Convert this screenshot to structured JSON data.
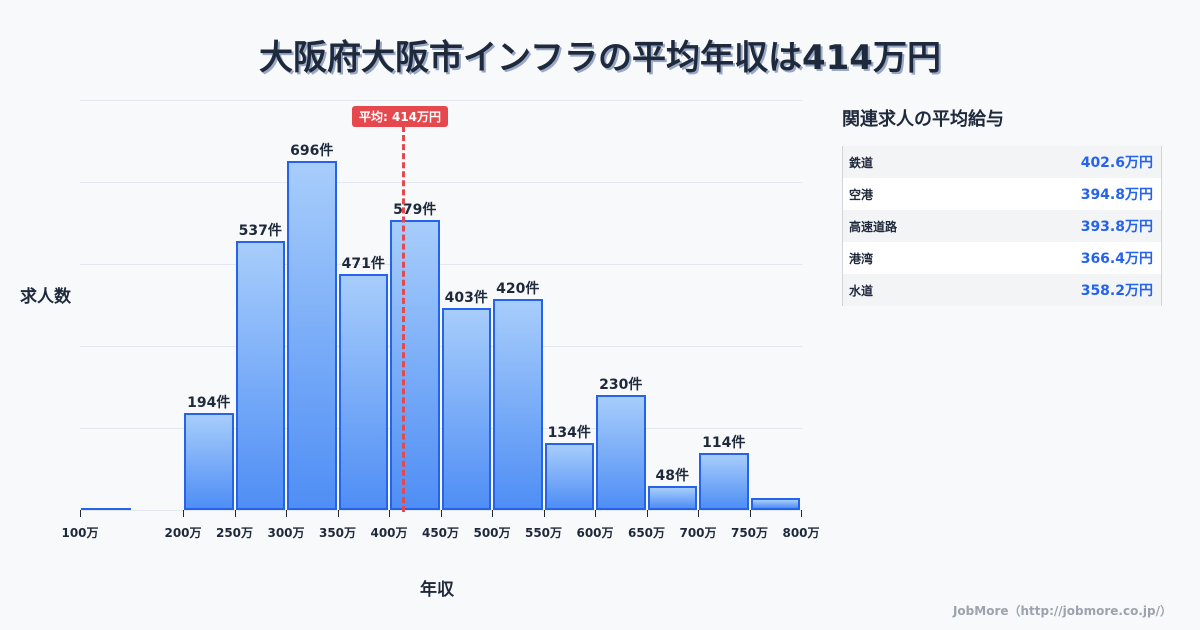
{
  "title": "大阪府大阪市インフラの平均年収は414万円",
  "chart": {
    "ylabel": "求人数",
    "xlabel": "年収",
    "average_badge": "平均: 414万円",
    "tick_labels": [
      "100万",
      "200万",
      "250万",
      "300万",
      "350万",
      "400万",
      "450万",
      "500万",
      "550万",
      "600万",
      "650万",
      "700万",
      "750万",
      "800万"
    ],
    "bar_labels": [
      "",
      "",
      "194件",
      "537件",
      "696件",
      "471件",
      "579件",
      "403件",
      "420件",
      "134件",
      "230件",
      "48件",
      "114件",
      ""
    ]
  },
  "sidebar": {
    "title": "関連求人の平均給与",
    "rows": [
      {
        "name": "鉄道",
        "value": "402.6万円"
      },
      {
        "name": "空港",
        "value": "394.8万円"
      },
      {
        "name": "高速道路",
        "value": "393.8万円"
      },
      {
        "name": "港湾",
        "value": "366.4万円"
      },
      {
        "name": "水道",
        "value": "358.2万円"
      }
    ]
  },
  "footer": "JobMore（http://jobmore.co.jp/）",
  "colors": {
    "bar_border": "#2563eb",
    "bar_top": "#a7cdfb",
    "bar_bottom": "#4f8ef5",
    "average_line": "#e5484d",
    "side_value": "#2563eb"
  },
  "chart_data": {
    "type": "bar",
    "title": "大阪府大阪市インフラの平均年収は414万円",
    "xlabel": "年収",
    "ylabel": "求人数",
    "categories": [
      "100-150万",
      "150-200万",
      "200-250万",
      "250-300万",
      "300-350万",
      "350-400万",
      "400-450万",
      "450-500万",
      "500-550万",
      "550-600万",
      "600-650万",
      "650-700万",
      "700-750万",
      "750-800万"
    ],
    "values": [
      2,
      0,
      194,
      537,
      696,
      471,
      579,
      403,
      420,
      134,
      230,
      48,
      114,
      24
    ],
    "average": 414,
    "average_label": "平均: 414万円",
    "x_ticks": [
      "100万",
      "200万",
      "250万",
      "300万",
      "350万",
      "400万",
      "450万",
      "500万",
      "550万",
      "600万",
      "650万",
      "700万",
      "750万",
      "800万"
    ],
    "grid": true,
    "ylim": [
      0,
      820
    ],
    "side_table": [
      {
        "name": "鉄道",
        "value": 402.6
      },
      {
        "name": "空港",
        "value": 394.8
      },
      {
        "name": "高速道路",
        "value": 393.8
      },
      {
        "name": "港湾",
        "value": 366.4
      },
      {
        "name": "水道",
        "value": 358.2
      }
    ]
  }
}
